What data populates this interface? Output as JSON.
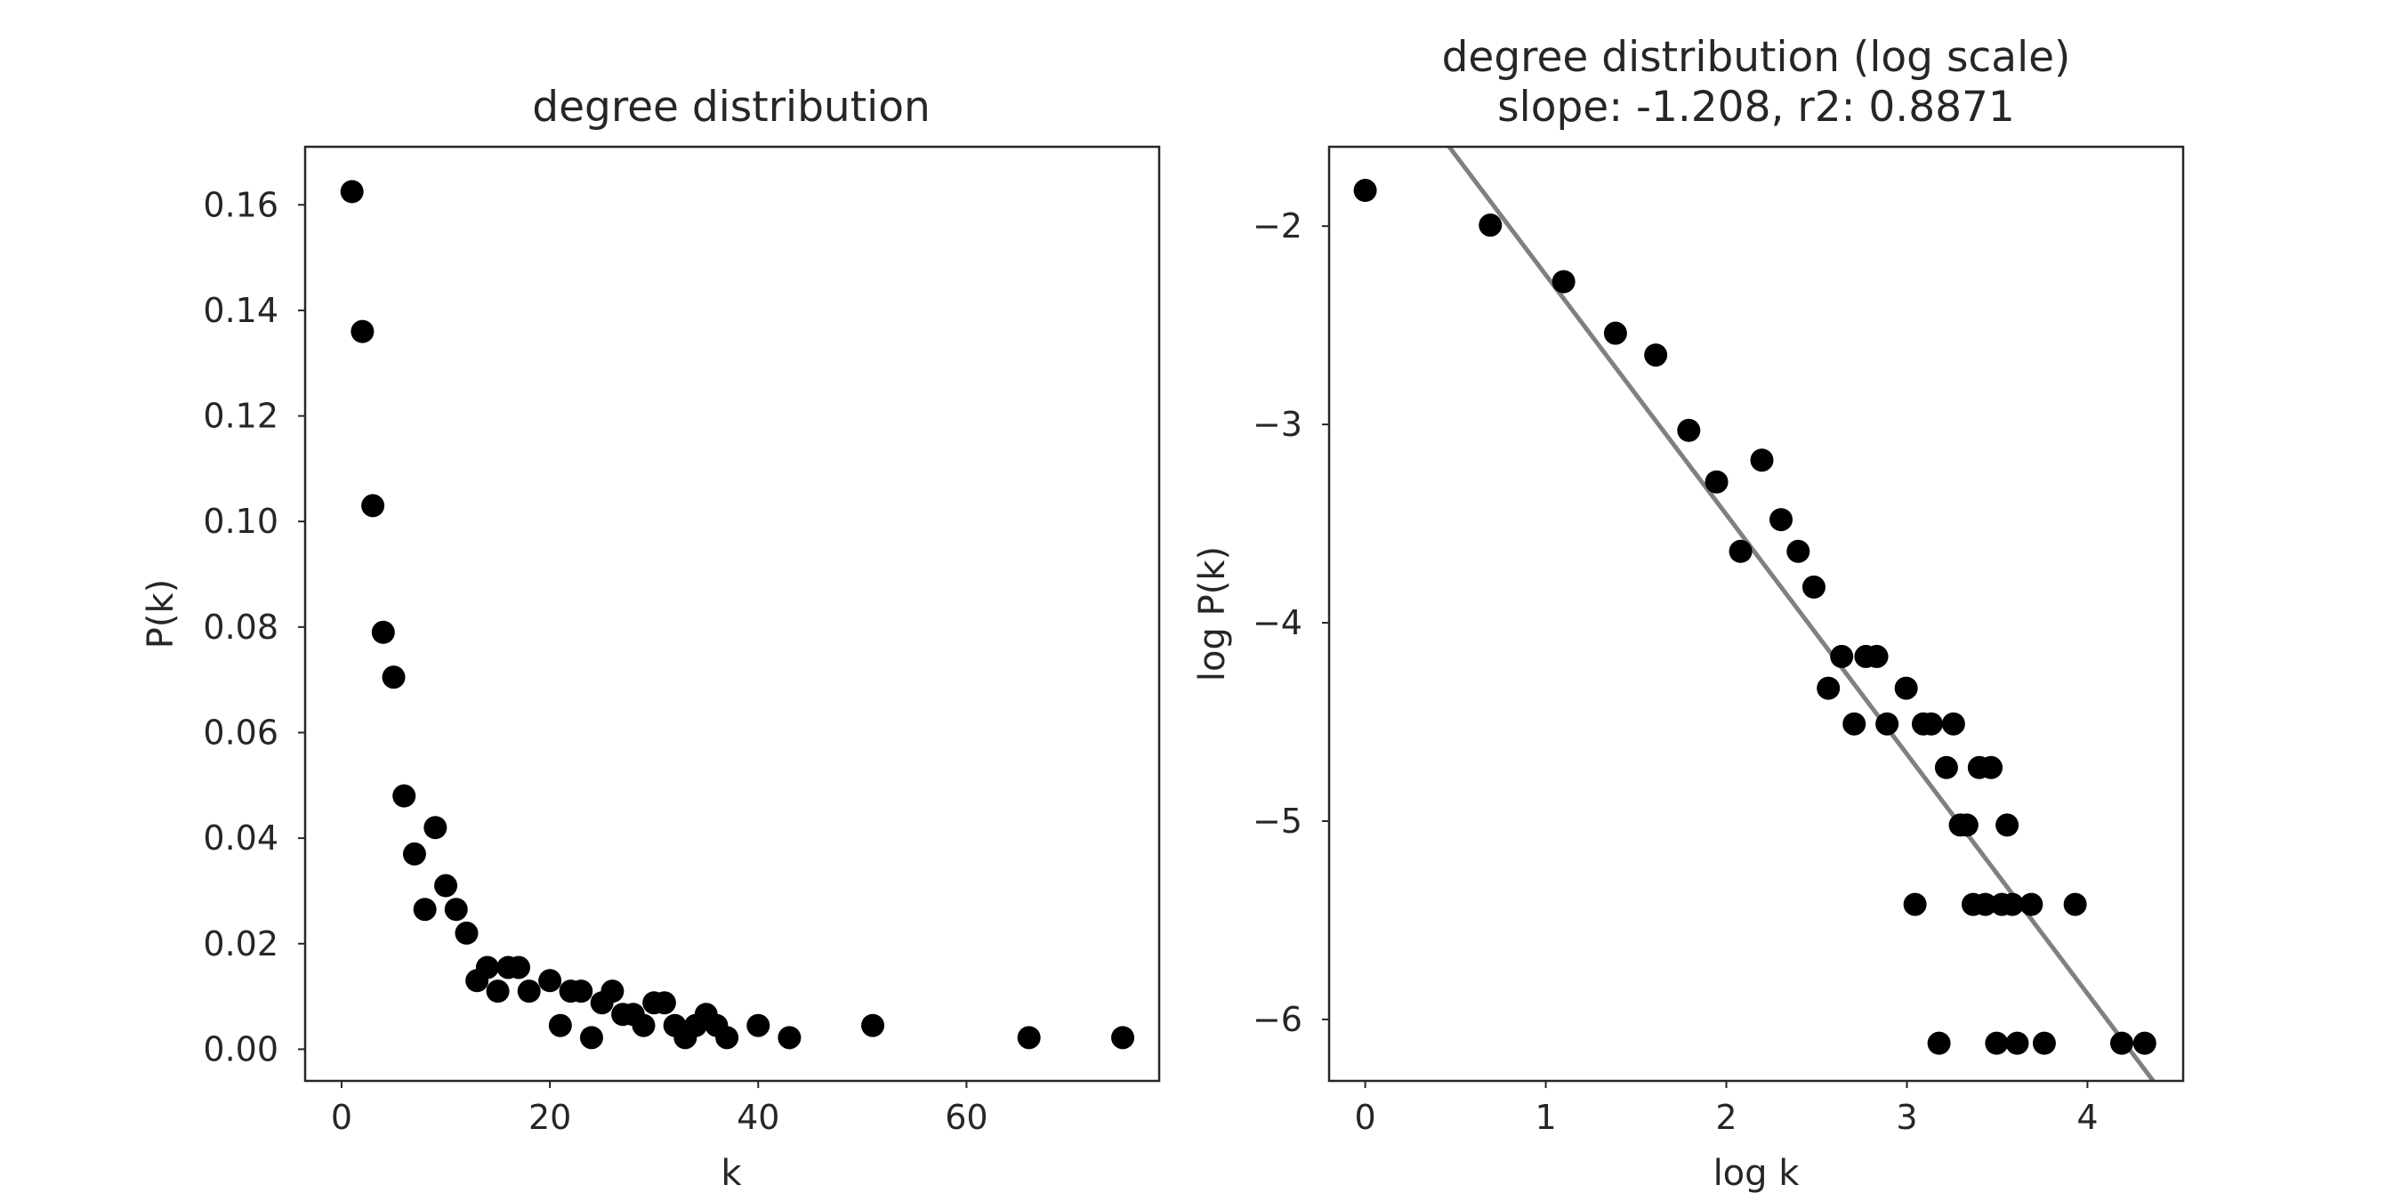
{
  "chart_data": [
    {
      "type": "scatter",
      "title": "degree distribution",
      "xlabel": "k",
      "ylabel": "P(k)",
      "xlim": [
        -3.5,
        78.5
      ],
      "ylim": [
        -0.006,
        0.171
      ],
      "xticks": [
        0,
        20,
        40,
        60
      ],
      "xtick_labels": [
        "0",
        "20",
        "40",
        "60"
      ],
      "yticks": [
        0.0,
        0.02,
        0.04,
        0.06,
        0.08,
        0.1,
        0.12,
        0.14,
        0.16
      ],
      "ytick_labels": [
        "0.00",
        "0.02",
        "0.04",
        "0.06",
        "0.08",
        "0.10",
        "0.12",
        "0.14",
        "0.16"
      ],
      "grid": false,
      "marker_color": "#000000",
      "points": [
        {
          "x": 1,
          "y": 0.1625
        },
        {
          "x": 2,
          "y": 0.136
        },
        {
          "x": 3,
          "y": 0.103
        },
        {
          "x": 4,
          "y": 0.079
        },
        {
          "x": 5,
          "y": 0.0705
        },
        {
          "x": 6,
          "y": 0.048
        },
        {
          "x": 7,
          "y": 0.037
        },
        {
          "x": 8,
          "y": 0.0265
        },
        {
          "x": 9,
          "y": 0.042
        },
        {
          "x": 10,
          "y": 0.031
        },
        {
          "x": 11,
          "y": 0.0265
        },
        {
          "x": 12,
          "y": 0.022
        },
        {
          "x": 13,
          "y": 0.013
        },
        {
          "x": 14,
          "y": 0.0155
        },
        {
          "x": 15,
          "y": 0.011
        },
        {
          "x": 16,
          "y": 0.0155
        },
        {
          "x": 17,
          "y": 0.0155
        },
        {
          "x": 18,
          "y": 0.011
        },
        {
          "x": 20,
          "y": 0.013
        },
        {
          "x": 21,
          "y": 0.0045
        },
        {
          "x": 22,
          "y": 0.011
        },
        {
          "x": 23,
          "y": 0.011
        },
        {
          "x": 24,
          "y": 0.0022
        },
        {
          "x": 25,
          "y": 0.0088
        },
        {
          "x": 26,
          "y": 0.011
        },
        {
          "x": 27,
          "y": 0.0066
        },
        {
          "x": 28,
          "y": 0.0066
        },
        {
          "x": 29,
          "y": 0.0045
        },
        {
          "x": 30,
          "y": 0.0088
        },
        {
          "x": 31,
          "y": 0.0088
        },
        {
          "x": 32,
          "y": 0.0045
        },
        {
          "x": 33,
          "y": 0.0022
        },
        {
          "x": 34,
          "y": 0.0045
        },
        {
          "x": 35,
          "y": 0.0066
        },
        {
          "x": 36,
          "y": 0.0045
        },
        {
          "x": 37,
          "y": 0.0022
        },
        {
          "x": 40,
          "y": 0.0045
        },
        {
          "x": 43,
          "y": 0.0022
        },
        {
          "x": 51,
          "y": 0.0045
        },
        {
          "x": 66,
          "y": 0.0022
        },
        {
          "x": 75,
          "y": 0.0022
        }
      ]
    },
    {
      "type": "scatter",
      "title": "degree distribution (log scale)",
      "subtitle": "slope: -1.208, r2: 0.8871",
      "xlabel": "log k",
      "ylabel": "log P(k)",
      "xlim": [
        -0.2,
        4.53
      ],
      "ylim": [
        -6.31,
        -1.6
      ],
      "xticks": [
        0,
        1,
        2,
        3,
        4
      ],
      "xtick_labels": [
        "0",
        "1",
        "2",
        "3",
        "4"
      ],
      "yticks": [
        -2,
        -3,
        -4,
        -5,
        -6
      ],
      "ytick_labels": [
        "−2",
        "−3",
        "−4",
        "−5",
        "−6"
      ],
      "grid": false,
      "marker_color": "#000000",
      "fit_line": {
        "slope": -1.208,
        "intercept": -1.038,
        "color": "#808080"
      },
      "points": [
        {
          "x": 0.0,
          "y": -1.82
        },
        {
          "x": 0.693,
          "y": -1.995
        },
        {
          "x": 1.099,
          "y": -2.28
        },
        {
          "x": 1.386,
          "y": -2.54
        },
        {
          "x": 1.609,
          "y": -2.65
        },
        {
          "x": 1.792,
          "y": -3.03
        },
        {
          "x": 1.946,
          "y": -3.29
        },
        {
          "x": 2.079,
          "y": -3.64
        },
        {
          "x": 2.197,
          "y": -3.18
        },
        {
          "x": 2.303,
          "y": -3.48
        },
        {
          "x": 2.398,
          "y": -3.64
        },
        {
          "x": 2.485,
          "y": -3.82
        },
        {
          "x": 2.565,
          "y": -4.33
        },
        {
          "x": 2.639,
          "y": -4.17
        },
        {
          "x": 2.708,
          "y": -4.51
        },
        {
          "x": 2.773,
          "y": -4.17
        },
        {
          "x": 2.833,
          "y": -4.17
        },
        {
          "x": 2.89,
          "y": -4.51
        },
        {
          "x": 2.996,
          "y": -4.33
        },
        {
          "x": 3.045,
          "y": -5.42
        },
        {
          "x": 3.091,
          "y": -4.51
        },
        {
          "x": 3.135,
          "y": -4.51
        },
        {
          "x": 3.178,
          "y": -6.12
        },
        {
          "x": 3.219,
          "y": -4.73
        },
        {
          "x": 3.258,
          "y": -4.51
        },
        {
          "x": 3.296,
          "y": -5.02
        },
        {
          "x": 3.332,
          "y": -5.02
        },
        {
          "x": 3.367,
          "y": -5.42
        },
        {
          "x": 3.401,
          "y": -4.73
        },
        {
          "x": 3.434,
          "y": -5.42
        },
        {
          "x": 3.466,
          "y": -4.73
        },
        {
          "x": 3.497,
          "y": -6.12
        },
        {
          "x": 3.526,
          "y": -5.42
        },
        {
          "x": 3.555,
          "y": -5.02
        },
        {
          "x": 3.584,
          "y": -5.42
        },
        {
          "x": 3.611,
          "y": -6.12
        },
        {
          "x": 3.689,
          "y": -5.42
        },
        {
          "x": 3.761,
          "y": -6.12
        },
        {
          "x": 3.932,
          "y": -5.42
        },
        {
          "x": 4.19,
          "y": -6.12
        },
        {
          "x": 4.317,
          "y": -6.12
        }
      ]
    }
  ]
}
